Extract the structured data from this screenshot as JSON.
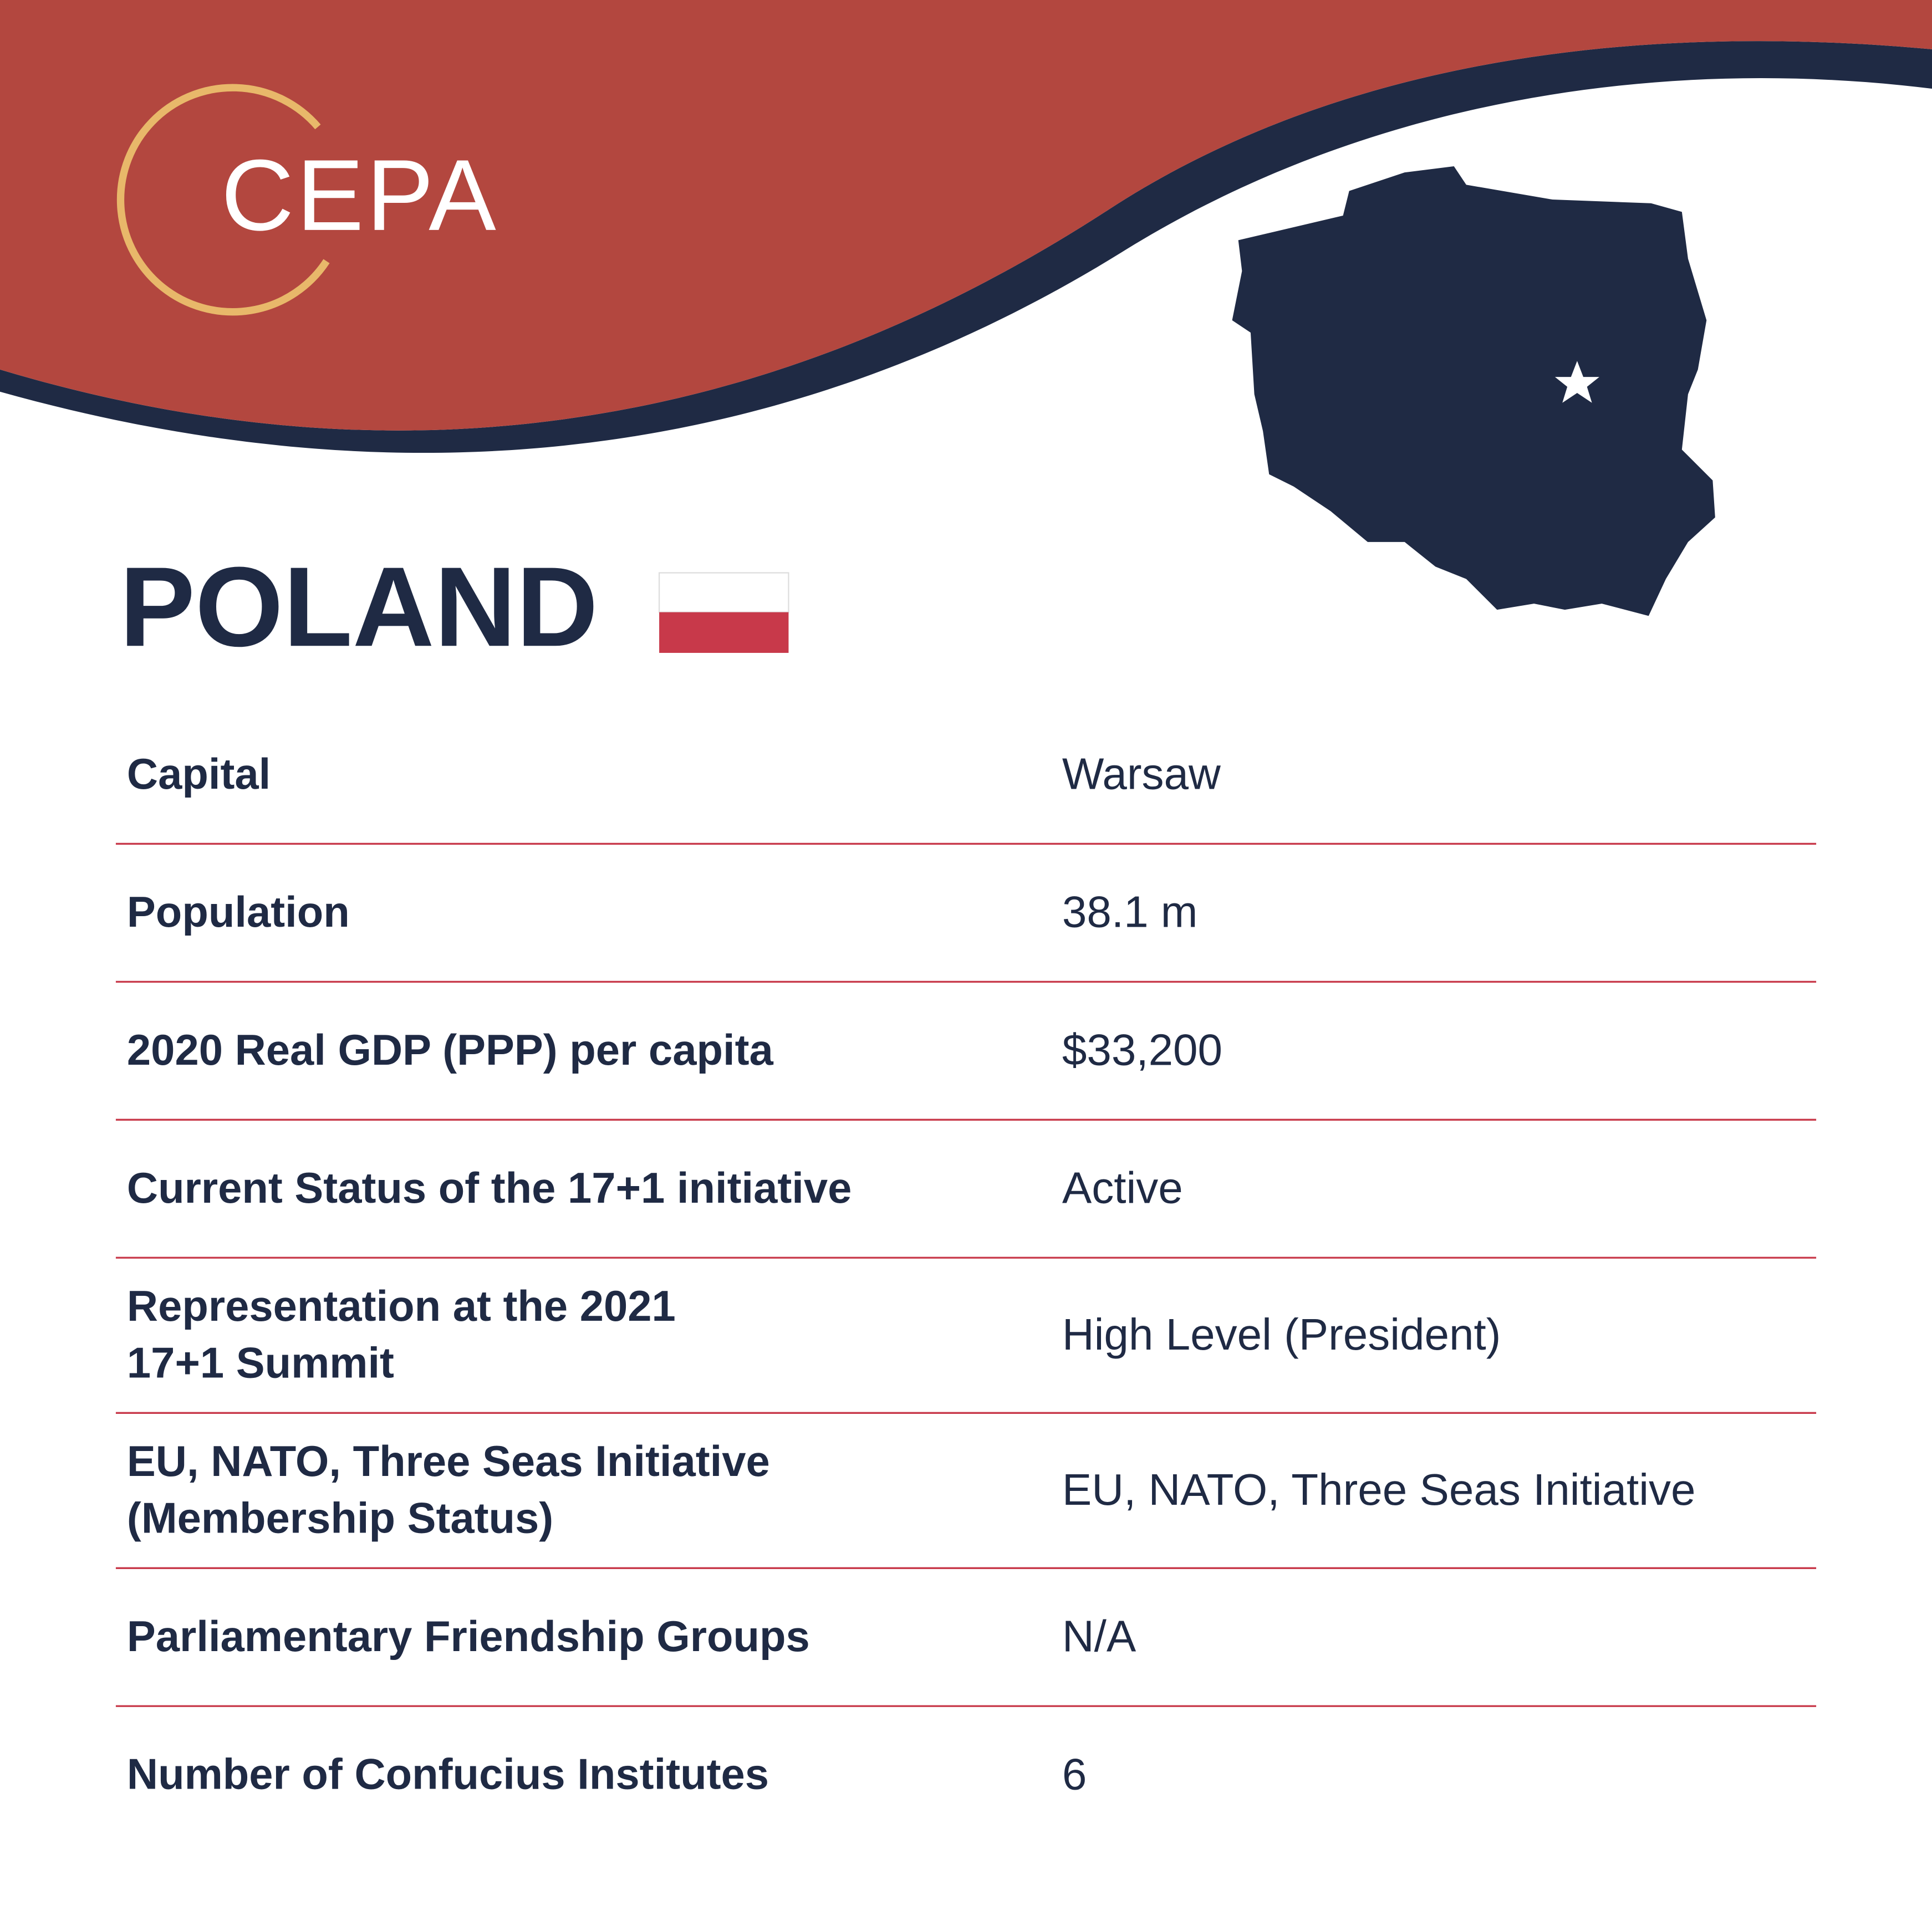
{
  "logo": {
    "text": "CEPA"
  },
  "title": "POLAND",
  "table": {
    "rows": [
      {
        "label": [
          "Capital"
        ],
        "value": "Warsaw"
      },
      {
        "label": [
          "Population"
        ],
        "value": "38.1 m"
      },
      {
        "label": [
          "2020 Real GDP (PPP) per capita"
        ],
        "value": "$33,200"
      },
      {
        "label": [
          "Current Status of the 17+1 initiative"
        ],
        "value": "Active"
      },
      {
        "label": [
          "Representation at the 2021",
          "17+1 Summit"
        ],
        "value": "High Level (President)"
      },
      {
        "label": [
          "EU, NATO, Three Seas Initiative",
          "(Membership Status)"
        ],
        "value": "EU, NATO, Three Seas Initiative"
      },
      {
        "label": [
          "Parliamentary Friendship Groups"
        ],
        "value": "N/A"
      },
      {
        "label": [
          "Number of Confucius Institutes"
        ],
        "value": "6"
      }
    ]
  }
}
